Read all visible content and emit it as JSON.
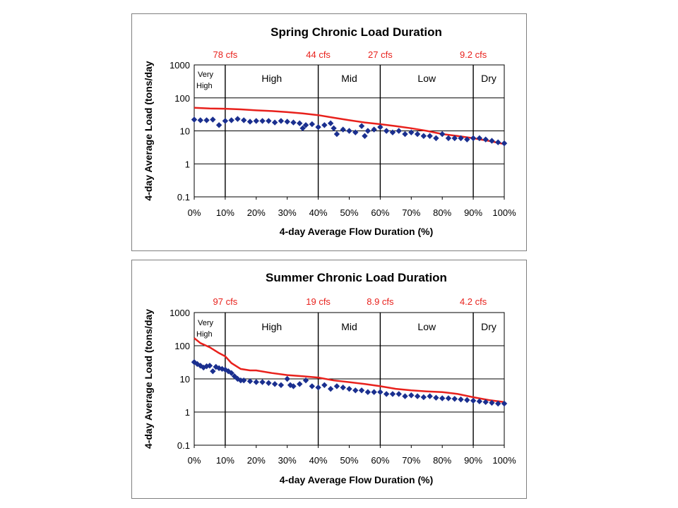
{
  "chart_data": [
    {
      "type": "scatter",
      "title": "Spring Chronic Load Duration",
      "xlabel": "4-day Average Flow Duration (%)",
      "ylabel": "4-day Average Load (tons/day",
      "yscale": "log",
      "ylim": [
        0.1,
        1000
      ],
      "xlim": [
        0,
        100
      ],
      "x_ticks": [
        "0%",
        "10%",
        "20%",
        "30%",
        "40%",
        "50%",
        "60%",
        "70%",
        "80%",
        "90%",
        "100%"
      ],
      "y_ticks": [
        "0.1",
        "1",
        "10",
        "100",
        "1000"
      ],
      "zones": [
        {
          "label": "Very High",
          "from": 0,
          "to": 10
        },
        {
          "label": "High",
          "from": 10,
          "to": 40
        },
        {
          "label": "Mid",
          "from": 40,
          "to": 60
        },
        {
          "label": "Low",
          "from": 60,
          "to": 90
        },
        {
          "label": "Dry",
          "from": 90,
          "to": 100
        }
      ],
      "flow_labels": [
        {
          "x": 10,
          "text": "78 cfs"
        },
        {
          "x": 40,
          "text": "44 cfs"
        },
        {
          "x": 60,
          "text": "27 cfs"
        },
        {
          "x": 90,
          "text": "9.2 cfs"
        }
      ],
      "line_series": {
        "color": "#e8211c",
        "x": [
          0,
          5,
          10,
          15,
          20,
          25,
          30,
          35,
          40,
          45,
          50,
          55,
          60,
          65,
          70,
          75,
          80,
          85,
          90,
          95,
          100
        ],
        "y": [
          50,
          48,
          47,
          45,
          42,
          40,
          37,
          34,
          30,
          25,
          21,
          18,
          16,
          14,
          12,
          10,
          8,
          7,
          6,
          5,
          4
        ]
      },
      "point_series": {
        "color": "#1a2f8f",
        "x": [
          0,
          2,
          4,
          6,
          8,
          10,
          12,
          14,
          16,
          18,
          20,
          22,
          24,
          26,
          28,
          30,
          32,
          34,
          35,
          36,
          38,
          40,
          42,
          44,
          45,
          46,
          48,
          50,
          52,
          54,
          55,
          56,
          58,
          60,
          62,
          64,
          66,
          68,
          70,
          72,
          74,
          76,
          78,
          80,
          82,
          84,
          86,
          88,
          90,
          92,
          94,
          96,
          98,
          100
        ],
        "y": [
          22,
          21,
          21,
          22,
          15,
          20,
          21,
          23,
          21,
          19,
          20,
          20,
          20,
          18,
          20,
          19,
          18,
          17,
          12,
          15,
          16,
          13,
          15,
          17,
          12,
          8,
          11,
          10,
          9,
          14,
          7,
          10,
          11,
          13,
          10,
          9,
          10,
          8,
          9,
          8,
          7,
          7,
          6,
          8,
          6,
          6,
          6,
          5.5,
          6,
          6,
          5.5,
          5,
          4.5,
          4.2
        ]
      }
    },
    {
      "type": "scatter",
      "title": "Summer Chronic Load Duration",
      "xlabel": "4-day Average Flow Duration (%)",
      "ylabel": "4-day Average Load (tons/day",
      "yscale": "log",
      "ylim": [
        0.1,
        1000
      ],
      "xlim": [
        0,
        100
      ],
      "x_ticks": [
        "0%",
        "10%",
        "20%",
        "30%",
        "40%",
        "50%",
        "60%",
        "70%",
        "80%",
        "90%",
        "100%"
      ],
      "y_ticks": [
        "0.1",
        "1",
        "10",
        "100",
        "1000"
      ],
      "zones": [
        {
          "label": "Very High",
          "from": 0,
          "to": 10
        },
        {
          "label": "High",
          "from": 10,
          "to": 40
        },
        {
          "label": "Mid",
          "from": 40,
          "to": 60
        },
        {
          "label": "Low",
          "from": 60,
          "to": 90
        },
        {
          "label": "Dry",
          "from": 90,
          "to": 100
        }
      ],
      "flow_labels": [
        {
          "x": 10,
          "text": "97 cfs"
        },
        {
          "x": 40,
          "text": "19 cfs"
        },
        {
          "x": 60,
          "text": "8.9 cfs"
        },
        {
          "x": 90,
          "text": "4.2 cfs"
        }
      ],
      "line_series": {
        "color": "#e8211c",
        "x": [
          0,
          2,
          5,
          8,
          10,
          12,
          15,
          18,
          20,
          25,
          30,
          35,
          40,
          45,
          50,
          55,
          60,
          65,
          70,
          75,
          80,
          85,
          90,
          95,
          100
        ],
        "y": [
          170,
          120,
          90,
          60,
          48,
          30,
          20,
          18,
          18,
          15,
          13,
          12,
          11,
          9,
          8,
          7,
          6,
          5,
          4.5,
          4.2,
          4,
          3.5,
          2.8,
          2.3,
          2
        ]
      },
      "point_series": {
        "color": "#1a2f8f",
        "x": [
          0,
          1,
          2,
          3,
          4,
          5,
          6,
          7,
          8,
          9,
          10,
          11,
          12,
          13,
          14,
          15,
          16,
          18,
          20,
          22,
          24,
          26,
          28,
          30,
          31,
          32,
          34,
          36,
          38,
          40,
          42,
          44,
          46,
          48,
          50,
          52,
          54,
          56,
          58,
          60,
          62,
          64,
          66,
          68,
          70,
          72,
          74,
          76,
          78,
          80,
          82,
          84,
          86,
          88,
          90,
          92,
          94,
          96,
          98,
          100
        ],
        "y": [
          32,
          28,
          25,
          22,
          24,
          25,
          17,
          23,
          21,
          20,
          19,
          17,
          15,
          12,
          10,
          9,
          9,
          8.5,
          8,
          8,
          7.5,
          7,
          6.5,
          10,
          6.5,
          6,
          7,
          9,
          6,
          5.5,
          6.5,
          5,
          6,
          5.5,
          5,
          4.5,
          4.5,
          4,
          4,
          4,
          3.5,
          3.5,
          3.5,
          3,
          3.2,
          3,
          2.8,
          3,
          2.7,
          2.6,
          2.6,
          2.5,
          2.4,
          2.3,
          2.2,
          2.1,
          2,
          1.9,
          1.8,
          1.8
        ]
      }
    }
  ]
}
